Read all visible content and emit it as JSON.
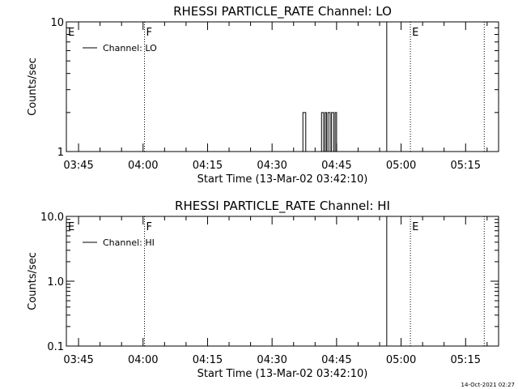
{
  "footer_timestamp": "14-Oct-2021 02:27",
  "chart_data": [
    {
      "type": "line",
      "title": "RHESSI PARTICLE_RATE Channel: LO",
      "xlabel": "Start Time (13-Mar-02 03:42:10)",
      "ylabel": "Counts/sec",
      "y_scale": "log",
      "ylim": [
        1,
        10
      ],
      "y_ticks": [
        1,
        10
      ],
      "y_tick_labels": [
        "1",
        "10"
      ],
      "xlim": [
        "03:42:10",
        "05:22:40"
      ],
      "x_ticks": [
        "03:45",
        "04:00",
        "04:15",
        "04:30",
        "04:45",
        "05:00",
        "05:15"
      ],
      "legend": "top-left",
      "series": [
        {
          "name": "Channel: LO",
          "x": [
            "03:42:10",
            "04:37:10",
            "04:37:10",
            "04:37:50",
            "04:37:50",
            "04:41:30",
            "04:41:30",
            "04:42:00",
            "04:42:00",
            "04:42:20",
            "04:42:20",
            "04:42:40",
            "04:42:40",
            "04:43:00",
            "04:43:00",
            "04:43:30",
            "04:43:30",
            "04:43:50",
            "04:43:50",
            "04:44:20",
            "04:44:20",
            "04:44:40",
            "04:44:40",
            "04:45:00",
            "04:45:00",
            "05:22:40"
          ],
          "values": [
            1,
            1,
            2,
            2,
            1,
            1,
            2,
            2,
            1,
            1,
            2,
            2,
            1,
            1,
            2,
            2,
            1,
            1,
            2,
            2,
            1,
            1,
            2,
            2,
            1,
            1
          ]
        }
      ],
      "markers": [
        {
          "label": "E",
          "time": "03:42:10",
          "style": "none"
        },
        {
          "label": "F",
          "time": "04:00:20",
          "style": "dotted"
        },
        {
          "label": "",
          "time": "04:56:40",
          "style": "solid"
        },
        {
          "label": "E",
          "time": "05:02:10",
          "style": "dotted"
        },
        {
          "label": "",
          "time": "05:19:20",
          "style": "dotted"
        }
      ]
    },
    {
      "type": "line",
      "title": "RHESSI PARTICLE_RATE Channel: HI",
      "xlabel": "Start Time (13-Mar-02 03:42:10)",
      "ylabel": "Counts/sec",
      "y_scale": "log",
      "ylim": [
        0.1,
        10
      ],
      "y_ticks": [
        0.1,
        1,
        10
      ],
      "y_tick_labels": [
        "0.1",
        "1.0",
        "10.0"
      ],
      "xlim": [
        "03:42:10",
        "05:22:40"
      ],
      "x_ticks": [
        "03:45",
        "04:00",
        "04:15",
        "04:30",
        "04:45",
        "05:00",
        "05:15"
      ],
      "legend": "top-left",
      "series": [
        {
          "name": "Channel: HI",
          "x": [],
          "values": []
        }
      ],
      "markers": [
        {
          "label": "E",
          "time": "03:42:10",
          "style": "none"
        },
        {
          "label": "F",
          "time": "04:00:20",
          "style": "dotted"
        },
        {
          "label": "",
          "time": "04:56:40",
          "style": "solid"
        },
        {
          "label": "E",
          "time": "05:02:10",
          "style": "dotted"
        },
        {
          "label": "",
          "time": "05:19:20",
          "style": "dotted"
        }
      ]
    }
  ]
}
